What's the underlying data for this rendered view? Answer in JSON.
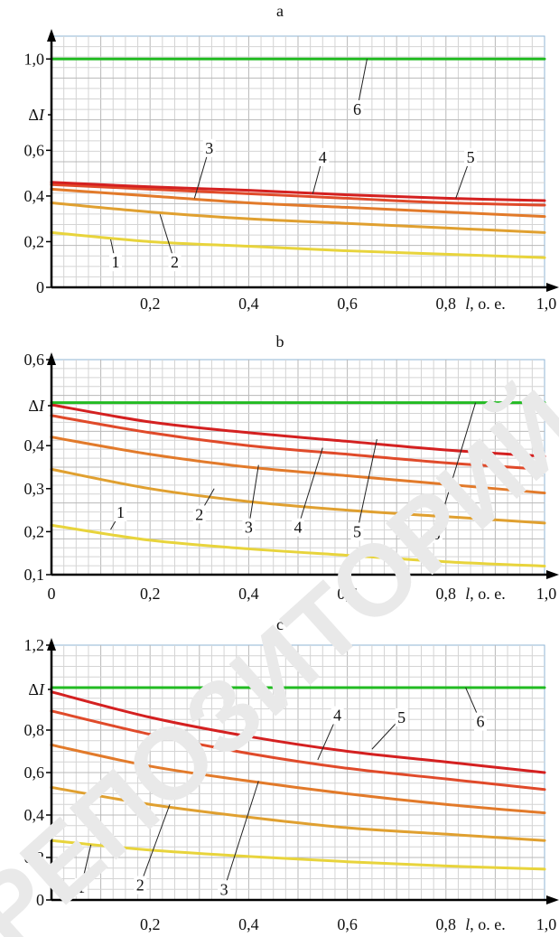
{
  "watermark": "РЕПОЗИТОРИЙ",
  "chart_data": [
    {
      "type": "line",
      "title": "a",
      "ylabel": "ΔI",
      "xlabel": "l, o. e.",
      "xlim": [
        0,
        1.0
      ],
      "ylim": [
        0,
        1.1
      ],
      "xticks": [
        "0,2",
        "0,4",
        "0,6",
        "0,8"
      ],
      "xticks_end": "1,0",
      "yticks": [
        "0",
        "0,2",
        "0,4",
        "0,6",
        "1,0"
      ],
      "grid": true,
      "x": [
        0,
        0.2,
        0.4,
        0.6,
        0.8,
        1.0
      ],
      "series": [
        {
          "name": "1",
          "color": "#e8d43c",
          "values": [
            0.24,
            0.2,
            0.18,
            0.16,
            0.145,
            0.13
          ]
        },
        {
          "name": "2",
          "color": "#e0a030",
          "values": [
            0.37,
            0.33,
            0.3,
            0.28,
            0.26,
            0.24
          ]
        },
        {
          "name": "3",
          "color": "#e27a2a",
          "values": [
            0.43,
            0.4,
            0.37,
            0.35,
            0.33,
            0.31
          ]
        },
        {
          "name": "4",
          "color": "#e04a2a",
          "values": [
            0.45,
            0.43,
            0.41,
            0.39,
            0.37,
            0.36
          ]
        },
        {
          "name": "5",
          "color": "#d42020",
          "values": [
            0.46,
            0.44,
            0.425,
            0.405,
            0.39,
            0.38
          ]
        },
        {
          "name": "6",
          "color": "#22bb22",
          "values": [
            1.0,
            1.0,
            1.0,
            1.0,
            1.0,
            1.0
          ]
        }
      ],
      "callouts": [
        {
          "label": "1",
          "tip": [
            0.12,
            0.21
          ],
          "pos": [
            0.13,
            0.11
          ]
        },
        {
          "label": "2",
          "tip": [
            0.22,
            0.32
          ],
          "pos": [
            0.25,
            0.11
          ]
        },
        {
          "label": "3",
          "tip": [
            0.29,
            0.39
          ],
          "pos": [
            0.32,
            0.61
          ]
        },
        {
          "label": "4",
          "tip": [
            0.53,
            0.41
          ],
          "pos": [
            0.55,
            0.57
          ]
        },
        {
          "label": "5",
          "tip": [
            0.82,
            0.39
          ],
          "pos": [
            0.85,
            0.57
          ]
        },
        {
          "label": "6",
          "tip": [
            0.64,
            1.0
          ],
          "pos": [
            0.62,
            0.78
          ]
        }
      ]
    },
    {
      "type": "line",
      "title": "b",
      "ylabel": "ΔI",
      "xlabel": "l, o. e.",
      "xlim": [
        0,
        1.0
      ],
      "ylim": [
        0.1,
        0.6
      ],
      "xticks": [
        "0",
        "0,2",
        "0,4",
        "0,6",
        "0,8"
      ],
      "xticks_end": "1,0",
      "yticks": [
        "0,1",
        "0,2",
        "0,3",
        "0,4",
        "0,6"
      ],
      "grid": true,
      "x": [
        0,
        0.2,
        0.4,
        0.6,
        0.8,
        1.0
      ],
      "series": [
        {
          "name": "1",
          "color": "#e8d43c",
          "values": [
            0.215,
            0.18,
            0.16,
            0.145,
            0.13,
            0.12
          ]
        },
        {
          "name": "2",
          "color": "#e0a030",
          "values": [
            0.345,
            0.3,
            0.27,
            0.25,
            0.235,
            0.22
          ]
        },
        {
          "name": "3",
          "color": "#e27a2a",
          "values": [
            0.42,
            0.38,
            0.35,
            0.33,
            0.31,
            0.29
          ]
        },
        {
          "name": "4",
          "color": "#e04a2a",
          "values": [
            0.47,
            0.43,
            0.4,
            0.38,
            0.36,
            0.345
          ]
        },
        {
          "name": "5",
          "color": "#d42020",
          "values": [
            0.495,
            0.455,
            0.43,
            0.41,
            0.39,
            0.375
          ]
        },
        {
          "name": "6",
          "color": "#22bb22",
          "values": [
            0.5,
            0.5,
            0.5,
            0.5,
            0.5,
            0.5
          ]
        }
      ],
      "callouts": [
        {
          "label": "1",
          "tip": [
            0.12,
            0.205
          ],
          "pos": [
            0.14,
            0.245
          ]
        },
        {
          "label": "2",
          "tip": [
            0.33,
            0.3
          ],
          "pos": [
            0.3,
            0.24
          ]
        },
        {
          "label": "3",
          "tip": [
            0.42,
            0.355
          ],
          "pos": [
            0.4,
            0.21
          ]
        },
        {
          "label": "4",
          "tip": [
            0.55,
            0.395
          ],
          "pos": [
            0.5,
            0.21
          ]
        },
        {
          "label": "5",
          "tip": [
            0.66,
            0.415
          ],
          "pos": [
            0.62,
            0.2
          ]
        },
        {
          "label": "6",
          "tip": [
            0.86,
            0.5
          ],
          "pos": [
            0.78,
            0.195
          ]
        }
      ]
    },
    {
      "type": "line",
      "title": "c",
      "ylabel": "ΔI",
      "xlabel": "l, o. e.",
      "xlim": [
        0,
        1.0
      ],
      "ylim": [
        0,
        1.2
      ],
      "xticks": [
        "0,2",
        "0,4",
        "0,6",
        "0,8"
      ],
      "xticks_end": "1,0",
      "yticks": [
        "0",
        "0,2",
        "0,4",
        "0,6",
        "0,8",
        "1,2"
      ],
      "grid": true,
      "x": [
        0,
        0.2,
        0.4,
        0.6,
        0.8,
        1.0
      ],
      "series": [
        {
          "name": "1",
          "color": "#e8d43c",
          "values": [
            0.28,
            0.235,
            0.205,
            0.18,
            0.16,
            0.145
          ]
        },
        {
          "name": "2",
          "color": "#e0a030",
          "values": [
            0.53,
            0.45,
            0.39,
            0.34,
            0.31,
            0.28
          ]
        },
        {
          "name": "3",
          "color": "#e27a2a",
          "values": [
            0.73,
            0.63,
            0.56,
            0.5,
            0.45,
            0.41
          ]
        },
        {
          "name": "4",
          "color": "#e04a2a",
          "values": [
            0.89,
            0.78,
            0.69,
            0.62,
            0.57,
            0.52
          ]
        },
        {
          "name": "5",
          "color": "#d42020",
          "values": [
            0.98,
            0.86,
            0.77,
            0.7,
            0.65,
            0.6
          ]
        },
        {
          "name": "6",
          "color": "#22bb22",
          "values": [
            1.0,
            1.0,
            1.0,
            1.0,
            1.0,
            1.0
          ]
        }
      ],
      "callouts": [
        {
          "label": "1",
          "tip": [
            0.08,
            0.26
          ],
          "pos": [
            0.06,
            0.06
          ]
        },
        {
          "label": "2",
          "tip": [
            0.24,
            0.45
          ],
          "pos": [
            0.18,
            0.07
          ]
        },
        {
          "label": "3",
          "tip": [
            0.42,
            0.56
          ],
          "pos": [
            0.35,
            0.05
          ]
        },
        {
          "label": "4",
          "tip": [
            0.54,
            0.66
          ],
          "pos": [
            0.58,
            0.87
          ]
        },
        {
          "label": "5",
          "tip": [
            0.65,
            0.71
          ],
          "pos": [
            0.71,
            0.86
          ]
        },
        {
          "label": "6",
          "tip": [
            0.84,
            1.0
          ],
          "pos": [
            0.87,
            0.84
          ]
        }
      ]
    }
  ]
}
